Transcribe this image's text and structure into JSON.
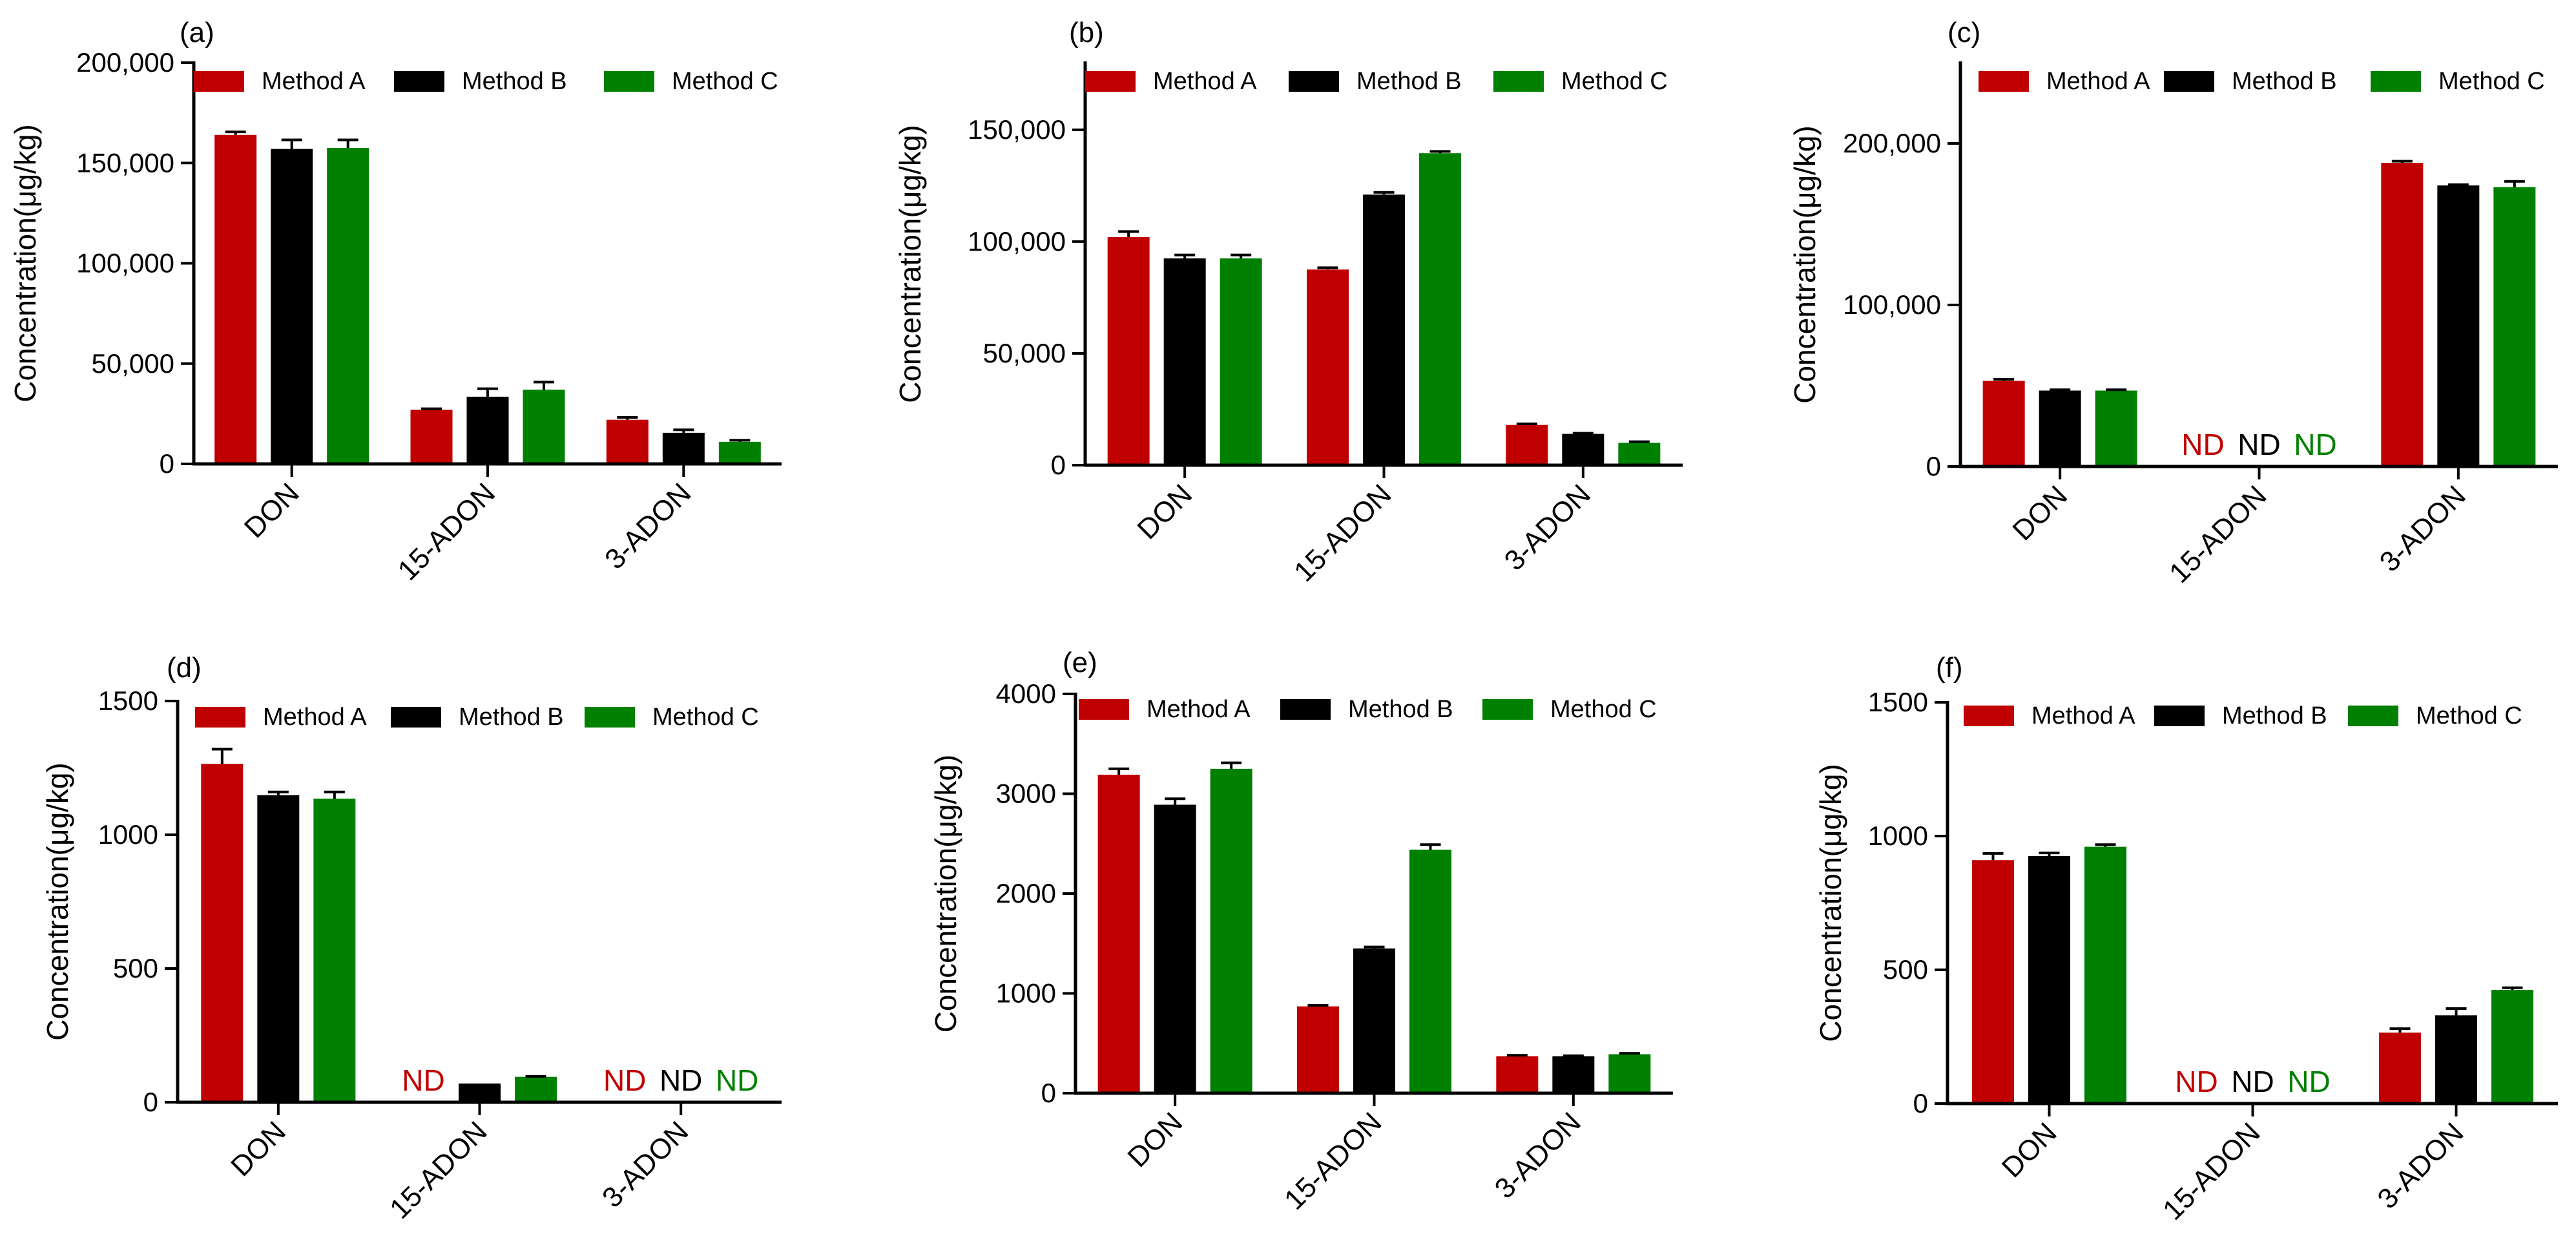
{
  "colors": {
    "Method A": "#c00000",
    "Method B": "#000000",
    "Method C": "#008000"
  },
  "chart_data": [
    {
      "panel": "(a)",
      "type": "bar",
      "ylabel": "Concentration(μg/kg)",
      "categories": [
        "DON",
        "15-ADON",
        "3-ADON"
      ],
      "ylim": [
        0,
        200000
      ],
      "yticks": [
        0,
        50000,
        100000,
        150000,
        200000
      ],
      "ytick_labels": [
        "0",
        "50,000",
        "100,000",
        "150,000",
        "200,000"
      ],
      "series": [
        {
          "name": "Method A",
          "values": [
            164000,
            27000,
            22000
          ],
          "errors": [
            1500,
            500,
            1200
          ]
        },
        {
          "name": "Method B",
          "values": [
            157000,
            33500,
            15500
          ],
          "errors": [
            4500,
            4000,
            1500
          ]
        },
        {
          "name": "Method C",
          "values": [
            157500,
            37000,
            11000
          ],
          "errors": [
            4000,
            3800,
            800
          ]
        }
      ],
      "nd_labels": []
    },
    {
      "panel": "(b)",
      "type": "bar",
      "ylabel": "Concentration(μg/kg)",
      "categories": [
        "DON",
        "15-ADON",
        "3-ADON"
      ],
      "ylim": [
        0,
        180000
      ],
      "yticks": [
        0,
        50000,
        100000,
        150000
      ],
      "ytick_labels": [
        "0",
        "50,000",
        "100,000",
        "150,000"
      ],
      "series": [
        {
          "name": "Method A",
          "values": [
            102000,
            87500,
            18000
          ],
          "errors": [
            2500,
            800,
            500
          ]
        },
        {
          "name": "Method B",
          "values": [
            92500,
            121000,
            14000
          ],
          "errors": [
            1500,
            1000,
            300
          ]
        },
        {
          "name": "Method C",
          "values": [
            92500,
            139500,
            10000
          ],
          "errors": [
            1500,
            800,
            500
          ]
        }
      ],
      "nd_labels": []
    },
    {
      "panel": "(c)",
      "type": "bar",
      "ylabel": "Concentration(μg/kg)",
      "categories": [
        "DON",
        "15-ADON",
        "3-ADON"
      ],
      "ylim": [
        0,
        250000
      ],
      "yticks": [
        0,
        100000,
        200000
      ],
      "ytick_labels": [
        "0",
        "100,000",
        "200,000"
      ],
      "series": [
        {
          "name": "Method A",
          "values": [
            53000,
            0,
            188000
          ],
          "errors": [
            1000,
            0,
            1000
          ]
        },
        {
          "name": "Method B",
          "values": [
            47000,
            0,
            174000
          ],
          "errors": [
            500,
            0,
            500
          ]
        },
        {
          "name": "Method C",
          "values": [
            47000,
            0,
            173000
          ],
          "errors": [
            500,
            0,
            3500
          ]
        }
      ],
      "nd_labels": [
        {
          "category": "15-ADON",
          "series": "Method A",
          "text": "ND"
        },
        {
          "category": "15-ADON",
          "series": "Method B",
          "text": "ND"
        },
        {
          "category": "15-ADON",
          "series": "Method C",
          "text": "ND"
        }
      ]
    },
    {
      "panel": "(d)",
      "type": "bar",
      "ylabel": "Concentration(μg/kg)",
      "categories": [
        "DON",
        "15-ADON",
        "3-ADON"
      ],
      "ylim": [
        0,
        1500
      ],
      "yticks": [
        0,
        500,
        1000,
        1500
      ],
      "ytick_labels": [
        "0",
        "500",
        "1000",
        "1500"
      ],
      "series": [
        {
          "name": "Method A",
          "values": [
            1265,
            0,
            0
          ],
          "errors": [
            55,
            0,
            0
          ]
        },
        {
          "name": "Method B",
          "values": [
            1148,
            70,
            0
          ],
          "errors": [
            12,
            0,
            0
          ]
        },
        {
          "name": "Method C",
          "values": [
            1135,
            95,
            0
          ],
          "errors": [
            25,
            2,
            0
          ]
        }
      ],
      "nd_labels": [
        {
          "category": "15-ADON",
          "series": "Method A",
          "text": "ND"
        },
        {
          "category": "3-ADON",
          "series": "Method A",
          "text": "ND"
        },
        {
          "category": "3-ADON",
          "series": "Method B",
          "text": "ND"
        },
        {
          "category": "3-ADON",
          "series": "Method C",
          "text": "ND"
        }
      ]
    },
    {
      "panel": "(e)",
      "type": "bar",
      "ylabel": "Concentration(μg/kg)",
      "categories": [
        "DON",
        "15-ADON",
        "3-ADON"
      ],
      "ylim": [
        0,
        4000
      ],
      "yticks": [
        0,
        1000,
        2000,
        3000,
        4000
      ],
      "ytick_labels": [
        "0",
        "1000",
        "2000",
        "3000",
        "4000"
      ],
      "series": [
        {
          "name": "Method A",
          "values": [
            3190,
            870,
            370
          ],
          "errors": [
            60,
            10,
            10
          ]
        },
        {
          "name": "Method B",
          "values": [
            2890,
            1450,
            370
          ],
          "errors": [
            60,
            15,
            5
          ]
        },
        {
          "name": "Method C",
          "values": [
            3250,
            2440,
            390
          ],
          "errors": [
            60,
            50,
            10
          ]
        }
      ],
      "nd_labels": []
    },
    {
      "panel": "(f)",
      "type": "bar",
      "ylabel": "Concentration(μg/kg)",
      "categories": [
        "DON",
        "15-ADON",
        "3-ADON"
      ],
      "ylim": [
        0,
        1500
      ],
      "yticks": [
        0,
        500,
        1000,
        1500
      ],
      "ytick_labels": [
        "0",
        "500",
        "1000",
        "1500"
      ],
      "series": [
        {
          "name": "Method A",
          "values": [
            910,
            0,
            265
          ],
          "errors": [
            25,
            0,
            15
          ]
        },
        {
          "name": "Method B",
          "values": [
            925,
            0,
            330
          ],
          "errors": [
            12,
            0,
            25
          ]
        },
        {
          "name": "Method C",
          "values": [
            960,
            0,
            425
          ],
          "errors": [
            8,
            0,
            8
          ]
        }
      ],
      "nd_labels": [
        {
          "category": "15-ADON",
          "series": "Method A",
          "text": "ND"
        },
        {
          "category": "15-ADON",
          "series": "Method B",
          "text": "ND"
        },
        {
          "category": "15-ADON",
          "series": "Method C",
          "text": "ND"
        }
      ]
    }
  ]
}
